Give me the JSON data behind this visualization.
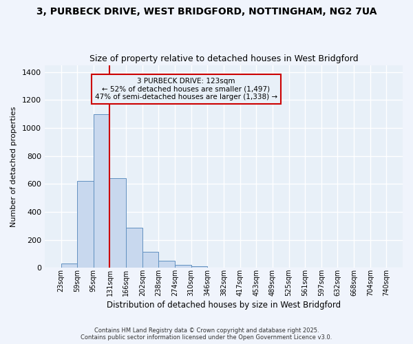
{
  "title_line1": "3, PURBECK DRIVE, WEST BRIDGFORD, NOTTINGHAM, NG2 7UA",
  "title_line2": "Size of property relative to detached houses in West Bridgford",
  "xlabel": "Distribution of detached houses by size in West Bridgford",
  "ylabel": "Number of detached properties",
  "bin_edges": [
    23,
    59,
    95,
    131,
    167,
    203,
    239,
    275,
    311,
    347,
    383,
    419,
    455,
    491,
    527,
    563,
    599,
    635,
    671,
    707,
    743
  ],
  "bar_heights": [
    30,
    620,
    1100,
    640,
    285,
    115,
    50,
    20,
    10,
    0,
    0,
    0,
    0,
    0,
    0,
    0,
    0,
    0,
    0,
    0
  ],
  "bar_color": "#c8d8ee",
  "bar_edge_color": "#6090c0",
  "background_color": "#f0f4fc",
  "plot_bg_color": "#e8f0f8",
  "grid_color": "#ffffff",
  "red_line_x": 131,
  "red_line_color": "#cc0000",
  "ylim": [
    0,
    1450
  ],
  "yticks": [
    0,
    200,
    400,
    600,
    800,
    1000,
    1200,
    1400
  ],
  "annotation_text": "3 PURBECK DRIVE: 123sqm\n← 52% of detached houses are smaller (1,497)\n47% of semi-detached houses are larger (1,338) →",
  "annotation_box_color": "#cc0000",
  "footer_line1": "Contains HM Land Registry data © Crown copyright and database right 2025.",
  "footer_line2": "Contains public sector information licensed under the Open Government Licence v3.0.",
  "tick_labels": [
    "23sqm",
    "59sqm",
    "95sqm",
    "131sqm",
    "166sqm",
    "202sqm",
    "238sqm",
    "274sqm",
    "310sqm",
    "346sqm",
    "382sqm",
    "417sqm",
    "453sqm",
    "489sqm",
    "525sqm",
    "561sqm",
    "597sqm",
    "632sqm",
    "668sqm",
    "704sqm",
    "740sqm"
  ]
}
